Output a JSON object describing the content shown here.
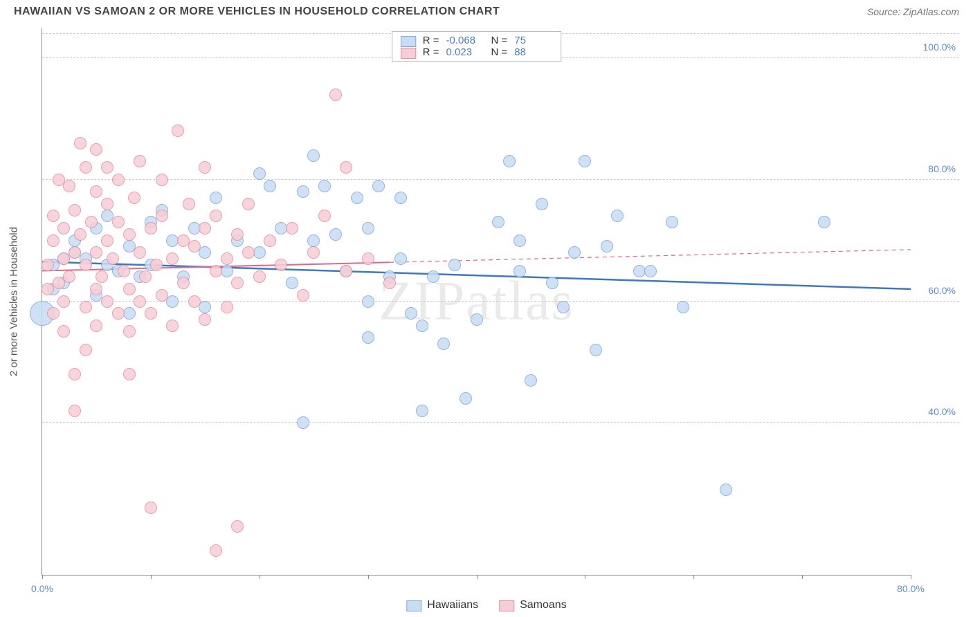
{
  "header": {
    "title": "HAWAIIAN VS SAMOAN 2 OR MORE VEHICLES IN HOUSEHOLD CORRELATION CHART",
    "source": "Source: ZipAtlas.com"
  },
  "watermark": "ZIPatlas",
  "chart": {
    "type": "scatter",
    "ylabel": "2 or more Vehicles in Household",
    "xlim": [
      0,
      80
    ],
    "ylim": [
      15,
      105
    ],
    "xticks": [
      0,
      10,
      20,
      30,
      40,
      50,
      60,
      70,
      80
    ],
    "xtick_labels": {
      "0": "0.0%",
      "80": "80.0%"
    },
    "yticks": [
      40,
      60,
      80,
      100
    ],
    "ytick_labels": {
      "40": "40.0%",
      "60": "60.0%",
      "80": "80.0%",
      "100": "100.0%"
    },
    "grid_color": "#cccccc",
    "axis_color": "#888888",
    "tick_label_color": "#5b8fd6",
    "background_color": "#ffffff",
    "series": [
      {
        "name": "Hawaiians",
        "fill": "#c7ddf4",
        "stroke": "#7fa9da",
        "marker_radius": 9,
        "trend": {
          "x1": 0,
          "y1": 66.5,
          "x2": 80,
          "y2": 62.0,
          "color": "#3b78c9",
          "width": 2.5,
          "dash_from_x": null
        },
        "points": [
          [
            0,
            58,
            18
          ],
          [
            1,
            66,
            9
          ],
          [
            1,
            62,
            9
          ],
          [
            2,
            67,
            9
          ],
          [
            2,
            63,
            9
          ],
          [
            3,
            68,
            9
          ],
          [
            3,
            70,
            9
          ],
          [
            4,
            67,
            9
          ],
          [
            5,
            61,
            9
          ],
          [
            5,
            72,
            9
          ],
          [
            6,
            66,
            9
          ],
          [
            6,
            74,
            9
          ],
          [
            7,
            65,
            9
          ],
          [
            8,
            69,
            9
          ],
          [
            8,
            58,
            9
          ],
          [
            9,
            64,
            9
          ],
          [
            10,
            66,
            9
          ],
          [
            10,
            73,
            9
          ],
          [
            11,
            75,
            9
          ],
          [
            12,
            70,
            9
          ],
          [
            12,
            60,
            9
          ],
          [
            13,
            64,
            9
          ],
          [
            14,
            72,
            9
          ],
          [
            15,
            68,
            9
          ],
          [
            15,
            59,
            9
          ],
          [
            16,
            77,
            9
          ],
          [
            17,
            65,
            9
          ],
          [
            18,
            70,
            9
          ],
          [
            20,
            81,
            9
          ],
          [
            20,
            68,
            9
          ],
          [
            21,
            79,
            9
          ],
          [
            22,
            72,
            9
          ],
          [
            23,
            63,
            9
          ],
          [
            24,
            78,
            9
          ],
          [
            24,
            40,
            9
          ],
          [
            25,
            70,
            9
          ],
          [
            25,
            84,
            9
          ],
          [
            26,
            79,
            9
          ],
          [
            27,
            71,
            9
          ],
          [
            28,
            65,
            9
          ],
          [
            29,
            77,
            9
          ],
          [
            30,
            72,
            9
          ],
          [
            30,
            60,
            9
          ],
          [
            30,
            54,
            9
          ],
          [
            31,
            79,
            9
          ],
          [
            32,
            64,
            9
          ],
          [
            33,
            77,
            9
          ],
          [
            33,
            67,
            9
          ],
          [
            34,
            58,
            9
          ],
          [
            35,
            42,
            9
          ],
          [
            35,
            56,
            9
          ],
          [
            36,
            64,
            9
          ],
          [
            37,
            53,
            9
          ],
          [
            38,
            66,
            9
          ],
          [
            39,
            44,
            9
          ],
          [
            40,
            57,
            9
          ],
          [
            42,
            73,
            9
          ],
          [
            43,
            83,
            9
          ],
          [
            44,
            65,
            9
          ],
          [
            44,
            70,
            9
          ],
          [
            45,
            47,
            9
          ],
          [
            46,
            76,
            9
          ],
          [
            48,
            59,
            9
          ],
          [
            49,
            68,
            9
          ],
          [
            50,
            83,
            9
          ],
          [
            51,
            52,
            9
          ],
          [
            52,
            69,
            9
          ],
          [
            53,
            74,
            9
          ],
          [
            55,
            65,
            9
          ],
          [
            58,
            73,
            9
          ],
          [
            59,
            59,
            9
          ],
          [
            63,
            29,
            9
          ],
          [
            72,
            73,
            9
          ],
          [
            56,
            65,
            9
          ],
          [
            47,
            63,
            9
          ]
        ]
      },
      {
        "name": "Samoans",
        "fill": "#f7cdd6",
        "stroke": "#e48fa0",
        "marker_radius": 9,
        "trend": {
          "x1": 0,
          "y1": 65.0,
          "x2": 80,
          "y2": 68.5,
          "color": "#e06a86",
          "width": 2,
          "dash_from_x": 32
        },
        "points": [
          [
            0.5,
            66,
            9
          ],
          [
            0.5,
            62,
            9
          ],
          [
            1,
            70,
            9
          ],
          [
            1,
            58,
            9
          ],
          [
            1,
            74,
            9
          ],
          [
            1.5,
            80,
            9
          ],
          [
            1.5,
            63,
            9
          ],
          [
            2,
            60,
            9
          ],
          [
            2,
            67,
            9
          ],
          [
            2,
            72,
            9
          ],
          [
            2,
            55,
            9
          ],
          [
            2.5,
            79,
            9
          ],
          [
            2.5,
            64,
            9
          ],
          [
            3,
            68,
            9
          ],
          [
            3,
            75,
            9
          ],
          [
            3,
            48,
            9
          ],
          [
            3,
            42,
            9
          ],
          [
            3.5,
            86,
            9
          ],
          [
            3.5,
            71,
            9
          ],
          [
            4,
            59,
            9
          ],
          [
            4,
            66,
            9
          ],
          [
            4,
            52,
            9
          ],
          [
            4,
            82,
            9
          ],
          [
            4.5,
            73,
            9
          ],
          [
            5,
            62,
            9
          ],
          [
            5,
            68,
            9
          ],
          [
            5,
            78,
            9
          ],
          [
            5,
            56,
            9
          ],
          [
            5,
            85,
            9
          ],
          [
            5.5,
            64,
            9
          ],
          [
            6,
            70,
            9
          ],
          [
            6,
            60,
            9
          ],
          [
            6,
            76,
            9
          ],
          [
            6,
            82,
            9
          ],
          [
            6.5,
            67,
            9
          ],
          [
            7,
            73,
            9
          ],
          [
            7,
            58,
            9
          ],
          [
            7,
            80,
            9
          ],
          [
            7.5,
            65,
            9
          ],
          [
            8,
            71,
            9
          ],
          [
            8,
            62,
            9
          ],
          [
            8,
            55,
            9
          ],
          [
            8,
            48,
            9
          ],
          [
            8.5,
            77,
            9
          ],
          [
            9,
            68,
            9
          ],
          [
            9,
            60,
            9
          ],
          [
            9,
            83,
            9
          ],
          [
            9.5,
            64,
            9
          ],
          [
            10,
            72,
            9
          ],
          [
            10,
            58,
            9
          ],
          [
            10,
            26,
            9
          ],
          [
            10.5,
            66,
            9
          ],
          [
            11,
            74,
            9
          ],
          [
            11,
            61,
            9
          ],
          [
            11,
            80,
            9
          ],
          [
            12,
            67,
            9
          ],
          [
            12,
            56,
            9
          ],
          [
            12.5,
            88,
            9
          ],
          [
            13,
            70,
            9
          ],
          [
            13,
            63,
            9
          ],
          [
            13.5,
            76,
            9
          ],
          [
            14,
            60,
            9
          ],
          [
            14,
            69,
            9
          ],
          [
            15,
            72,
            9
          ],
          [
            15,
            57,
            9
          ],
          [
            15,
            82,
            9
          ],
          [
            16,
            65,
            9
          ],
          [
            16,
            74,
            9
          ],
          [
            17,
            67,
            9
          ],
          [
            17,
            59,
            9
          ],
          [
            18,
            71,
            9
          ],
          [
            18,
            63,
            9
          ],
          [
            18,
            23,
            9
          ],
          [
            19,
            68,
            9
          ],
          [
            19,
            76,
            9
          ],
          [
            20,
            64,
            9
          ],
          [
            21,
            70,
            9
          ],
          [
            22,
            66,
            9
          ],
          [
            23,
            72,
            9
          ],
          [
            24,
            61,
            9
          ],
          [
            25,
            68,
            9
          ],
          [
            26,
            74,
            9
          ],
          [
            27,
            94,
            9
          ],
          [
            28,
            65,
            9
          ],
          [
            28,
            82,
            9
          ],
          [
            30,
            67,
            9
          ],
          [
            32,
            63,
            9
          ],
          [
            16,
            19,
            9
          ]
        ]
      }
    ],
    "stats_box": {
      "rows": [
        {
          "swatch_fill": "#c7ddf4",
          "swatch_stroke": "#7fa9da",
          "r": "-0.068",
          "n": "75"
        },
        {
          "swatch_fill": "#f7cdd6",
          "swatch_stroke": "#e48fa0",
          "r": "0.023",
          "n": "88"
        }
      ],
      "r_label": "R =",
      "n_label": "N ="
    },
    "legend": [
      {
        "label": "Hawaiians",
        "fill": "#c7ddf4",
        "stroke": "#7fa9da"
      },
      {
        "label": "Samoans",
        "fill": "#f7cdd6",
        "stroke": "#e48fa0"
      }
    ]
  }
}
